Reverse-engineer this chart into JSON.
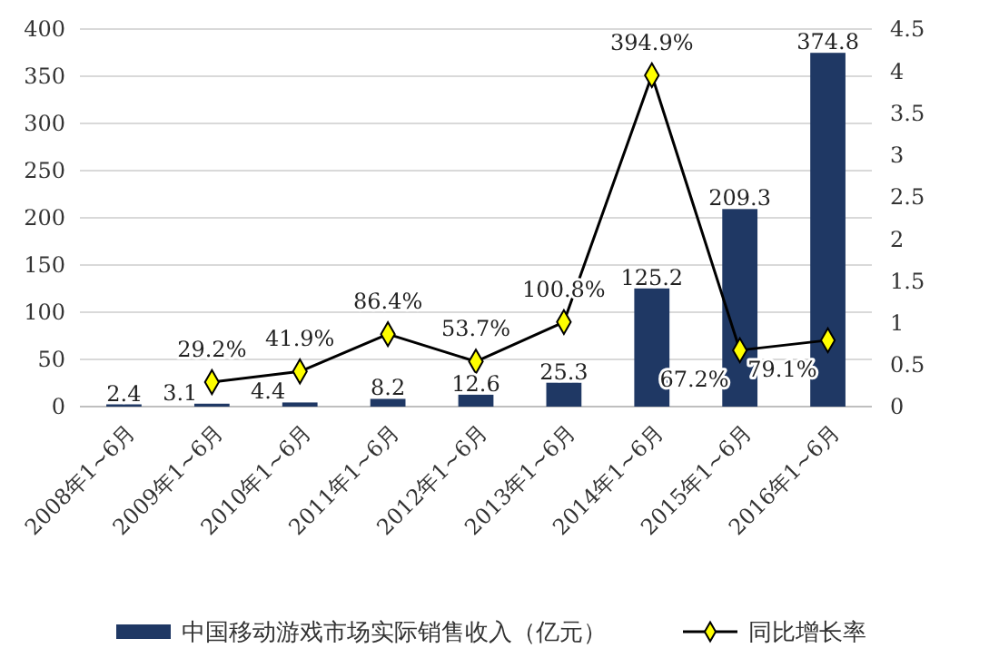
{
  "chart_data": {
    "type": "bar",
    "categories": [
      "2008年1~6月",
      "2009年1~6月",
      "2010年1~6月",
      "2011年1~6月",
      "2012年1~6月",
      "2013年1~6月",
      "2014年1~6月",
      "2015年1~6月",
      "2016年1~6月"
    ],
    "series": [
      {
        "name": "中国移动游戏市场实际销售收入（亿元）",
        "color": "#1f3864",
        "values": [
          2.4,
          3.1,
          4.4,
          8.2,
          12.6,
          25.3,
          125.2,
          209.3,
          374.8
        ],
        "value_labels": [
          "2.4",
          "3.1",
          "4.4",
          "8.2",
          "12.6",
          "25.3",
          "125.2",
          "209.3",
          "374.8"
        ]
      },
      {
        "name": "同比增长率",
        "type": "line",
        "axis": "y2",
        "color": "#000000",
        "marker": "diamond",
        "values": [
          null,
          0.292,
          0.419,
          0.864,
          0.537,
          1.008,
          3.949,
          0.672,
          0.791
        ],
        "value_labels": [
          null,
          "29.2%",
          "41.9%",
          "86.4%",
          "53.7%",
          "100.8%",
          "394.9%",
          "67.2%",
          "79.1%"
        ]
      }
    ],
    "ylim": [
      0,
      400
    ],
    "yticks": [
      0,
      50,
      100,
      150,
      200,
      250,
      300,
      350,
      400
    ],
    "y2lim": [
      0,
      4.5
    ],
    "y2ticks": [
      0,
      0.5,
      1,
      1.5,
      2,
      2.5,
      3,
      3.5,
      4,
      4.5
    ],
    "grid": "y",
    "legend": "bottom"
  }
}
